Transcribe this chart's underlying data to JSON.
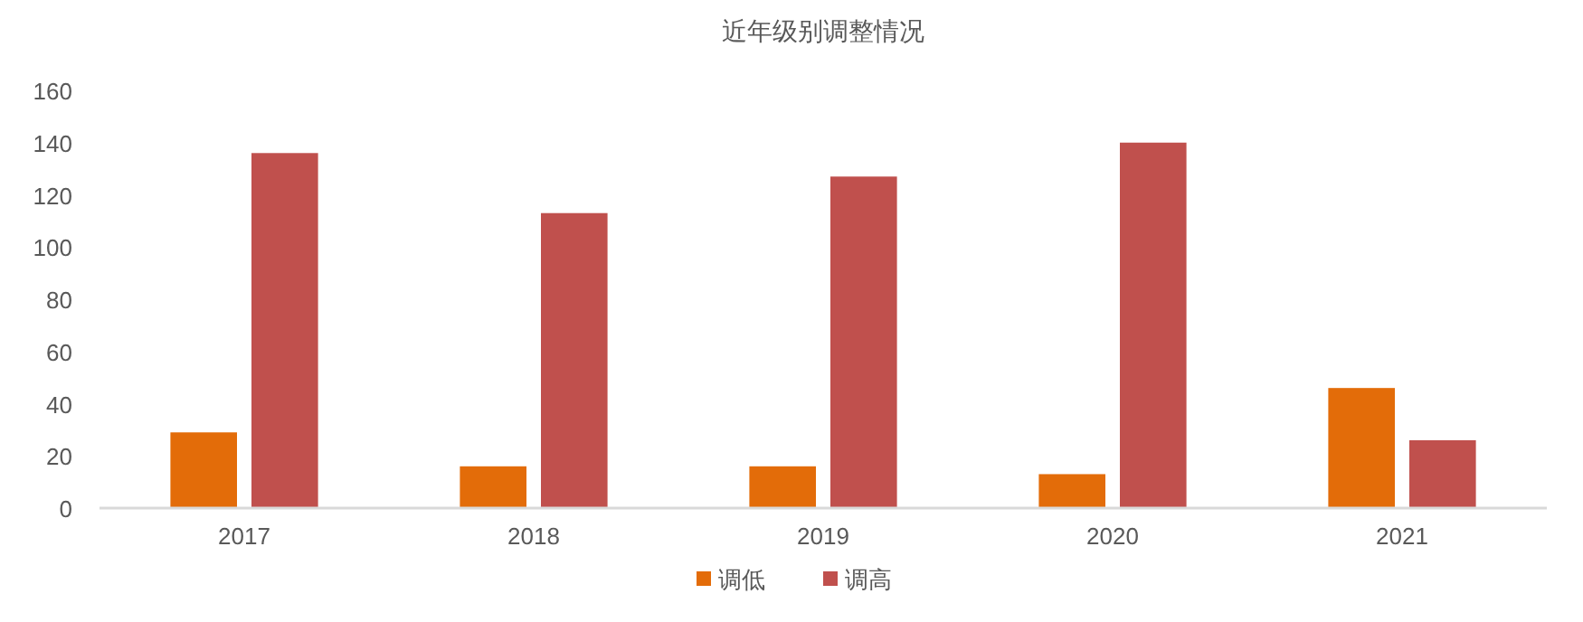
{
  "chart_data": {
    "type": "bar",
    "title": "近年级别调整情况",
    "categories": [
      "2017",
      "2018",
      "2019",
      "2020",
      "2021"
    ],
    "series": [
      {
        "name": "调低",
        "color": "#e36c09",
        "values": [
          29,
          16,
          16,
          13,
          46
        ]
      },
      {
        "name": "调高",
        "color": "#c0504d",
        "values": [
          136,
          113,
          127,
          140,
          26
        ]
      }
    ],
    "ylim": [
      0,
      160
    ],
    "yticks": [
      0,
      20,
      40,
      60,
      80,
      100,
      120,
      140,
      160
    ],
    "grid": false,
    "legend": "bottom"
  }
}
